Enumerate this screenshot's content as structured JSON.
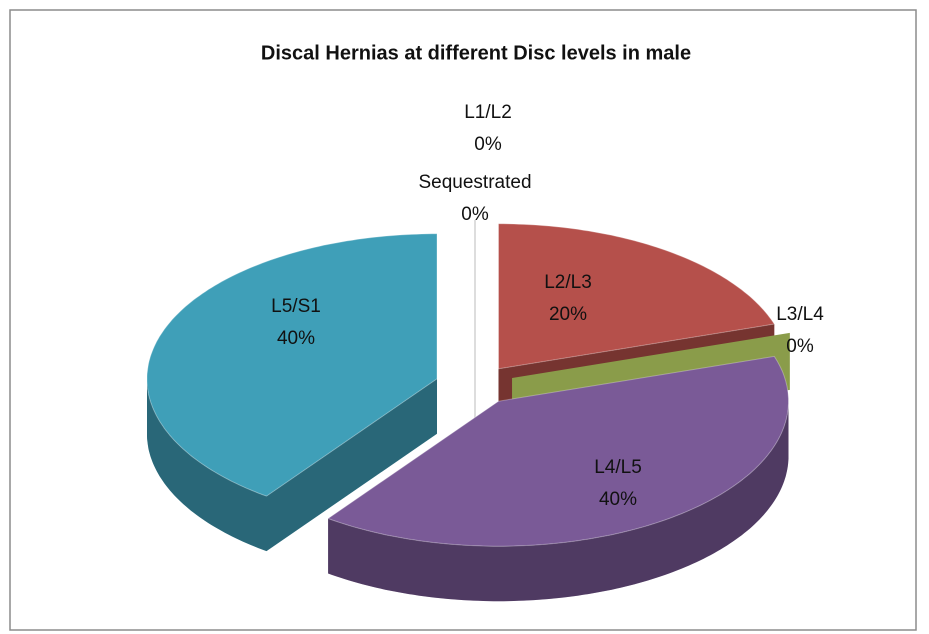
{
  "chart_data": {
    "type": "pie",
    "title": "Discal Hernias at different Disc levels in male",
    "categories": [
      "L1/L2",
      "L2/L3",
      "L3/L4",
      "L4/L5",
      "L5/S1",
      "Sequestrated"
    ],
    "values": [
      0,
      20,
      0,
      40,
      40,
      0
    ],
    "value_labels": [
      "0%",
      "20%",
      "0%",
      "40%",
      "40%",
      "0%"
    ],
    "colors": [
      "#4f81bd",
      "#b5504b",
      "#8a9c4a",
      "#7a5a97",
      "#3f9fb8",
      "#e08a3c"
    ]
  }
}
